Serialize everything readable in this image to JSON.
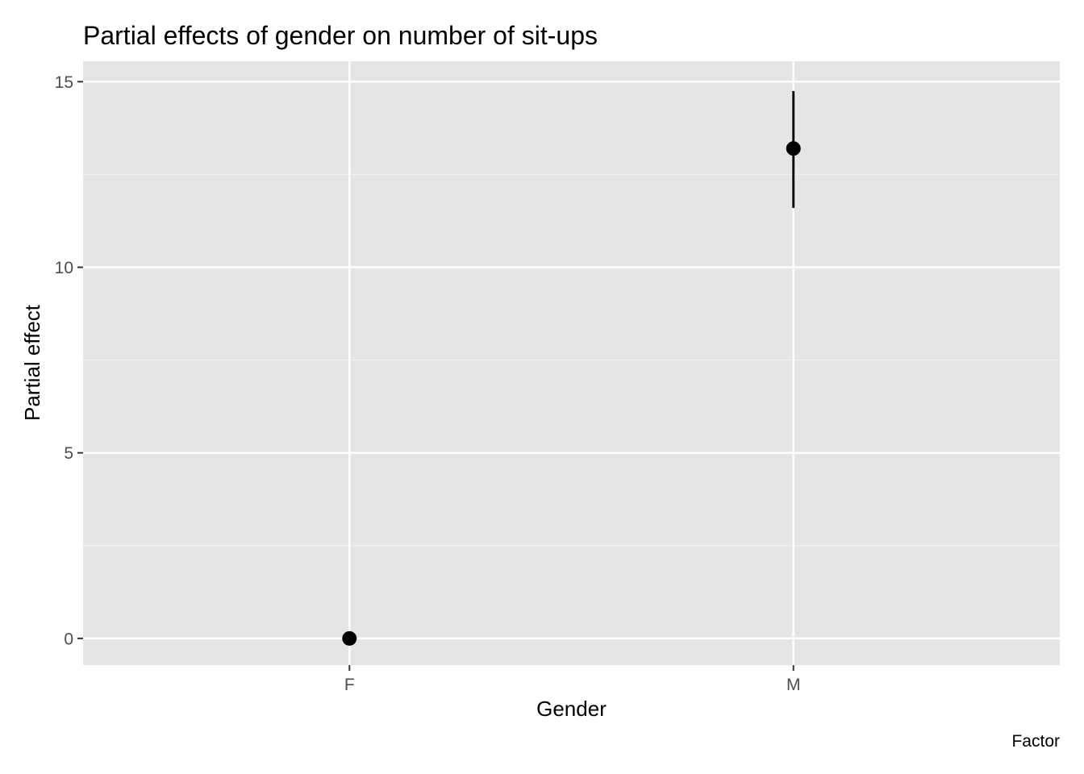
{
  "chart_data": {
    "type": "scatter",
    "title": "Partial effects of gender on number of sit-ups",
    "xlabel": "Gender",
    "ylabel": "Partial effect",
    "caption": "Factor",
    "categories": [
      "F",
      "M"
    ],
    "points": [
      {
        "x": "F",
        "y": 0,
        "lower": 0,
        "upper": 0
      },
      {
        "x": "M",
        "y": 13.2,
        "lower": 11.6,
        "upper": 14.75
      }
    ],
    "y_ticks": [
      0,
      5,
      10,
      15
    ],
    "y_tick_labels": [
      "0",
      "5",
      "10",
      "15"
    ],
    "ylim": [
      -0.72,
      15.55
    ],
    "grid": true,
    "colors": {
      "panel_background": "#e5e5e5",
      "grid_major": "#ffffff",
      "grid_minor": "#f2f2f2",
      "point": "#000000",
      "tick": "#333333"
    }
  }
}
